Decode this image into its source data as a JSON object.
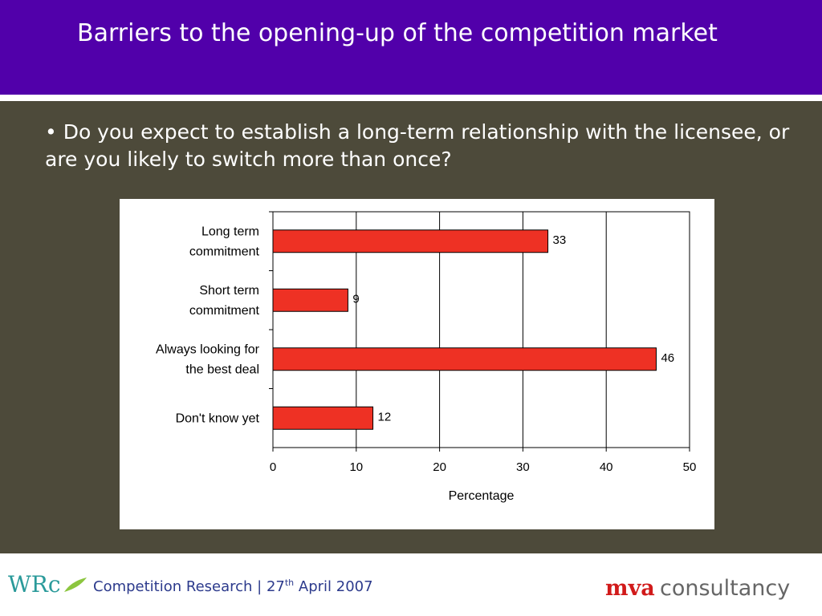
{
  "header": {
    "title": "Barriers to the opening-up of the competition market"
  },
  "question": "• Do you expect to establish a long-term relationship with the licensee, or are you likely to switch more than once?",
  "chart_data": {
    "type": "bar",
    "orientation": "horizontal",
    "categories": [
      [
        "Long term",
        "commitment"
      ],
      [
        "Short term",
        "commitment"
      ],
      [
        "Always looking for",
        "the best deal"
      ],
      [
        "Don't know yet"
      ]
    ],
    "values": [
      33,
      9,
      46,
      12
    ],
    "data_labels": [
      "33",
      "9",
      "46",
      "12"
    ],
    "xlabel": "Percentage",
    "xlim": [
      0,
      50
    ],
    "xticks": [
      "0",
      "10",
      "20",
      "30",
      "40",
      "50"
    ],
    "grid": true,
    "bar_color": "#ee3124"
  },
  "footer": {
    "text_before": "Competition Research | 27",
    "text_sup": "th",
    "text_after": " April 2007",
    "logo_left": "WRc",
    "logo_right_a": "mva",
    "logo_right_b": "consultancy"
  },
  "colors": {
    "header_bg": "#5100aa",
    "content_bg": "#4d4a3a",
    "wrc_teal": "#2a9a9a",
    "mva_red": "#d11a1a",
    "mva_gray": "#666666"
  }
}
